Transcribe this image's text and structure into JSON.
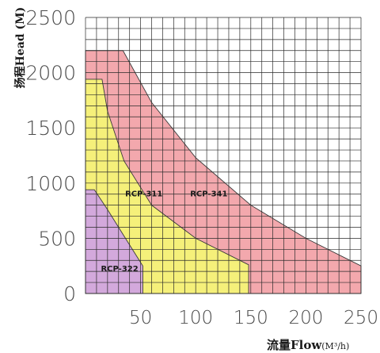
{
  "chart_data": {
    "type": "area",
    "xlabel": "流量Flow",
    "xlabel_unit": "(M³/h)",
    "ylabel": "扬程Head (M)",
    "xlim": [
      0,
      250
    ],
    "ylim": [
      0,
      2500
    ],
    "x_ticks": [
      "50",
      "100",
      "150",
      "200",
      "250"
    ],
    "y_ticks": [
      "0",
      "500",
      "1000",
      "1500",
      "2000",
      "2500"
    ],
    "grid": true,
    "grid_step": {
      "x": 10,
      "y": 100
    },
    "series": [
      {
        "name": "RCP-341",
        "color": "#f3a8ad",
        "points": [
          [
            0,
            2200
          ],
          [
            34,
            2200
          ],
          [
            60,
            1730
          ],
          [
            100,
            1230
          ],
          [
            150,
            800
          ],
          [
            200,
            500
          ],
          [
            250,
            250
          ],
          [
            250,
            0
          ],
          [
            0,
            0
          ]
        ]
      },
      {
        "name": "RCP-311",
        "color": "#f5f07a",
        "points": [
          [
            0,
            1940
          ],
          [
            15,
            1940
          ],
          [
            20,
            1650
          ],
          [
            35,
            1200
          ],
          [
            60,
            800
          ],
          [
            100,
            500
          ],
          [
            148,
            260
          ],
          [
            148,
            0
          ],
          [
            0,
            0
          ]
        ]
      },
      {
        "name": "RCP-322",
        "color": "#d3a9dc",
        "points": [
          [
            0,
            940
          ],
          [
            8,
            940
          ],
          [
            20,
            760
          ],
          [
            35,
            520
          ],
          [
            52,
            250
          ],
          [
            52,
            0
          ],
          [
            0,
            0
          ]
        ]
      }
    ],
    "labels": [
      {
        "text": "RCP-341",
        "x": 95,
        "y": 880
      },
      {
        "text": "RCP-311",
        "x": 36,
        "y": 880
      },
      {
        "text": "RCP-322",
        "x": 14,
        "y": 200
      }
    ]
  }
}
